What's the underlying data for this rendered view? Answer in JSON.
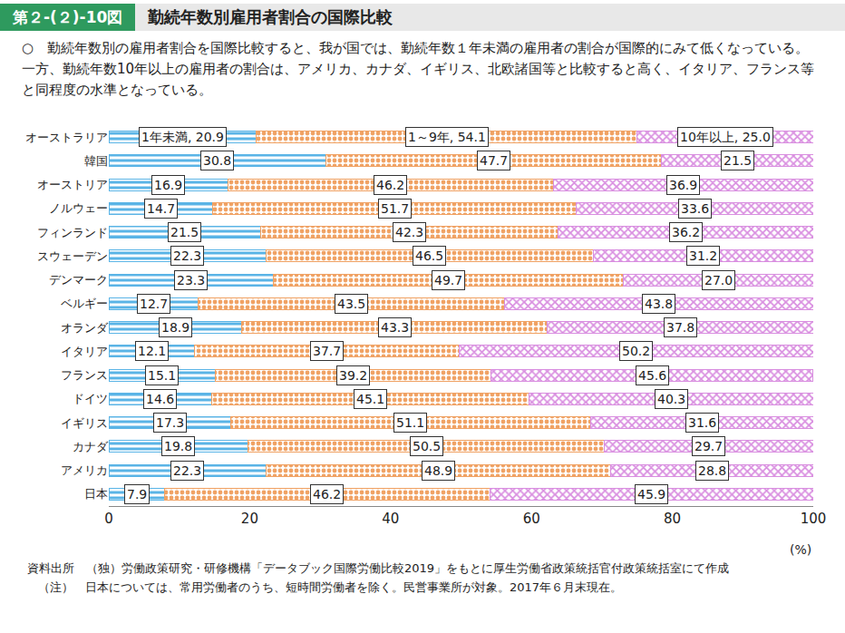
{
  "chart_data": {
    "type": "bar",
    "orientation": "horizontal",
    "stacked": true,
    "figure_label": "第２-(２)-10図",
    "title": "勤続年数別雇用者割合の国際比較",
    "subtitle": "○　勤続年数別の雇用者割合を国際比較すると、我が国では、勤続年数１年未満の雇用者の割合が国際的にみて低くなっている。一方、勤続年数10年以上の雇用者の割合は、アメリカ、カナダ、イギリス、北欧諸国等と比較すると高く、イタリア、フランス等と同程度の水準となっている。",
    "xlabel": "(%)",
    "source": "資料出所　（独）労働政策研究・研修機構「データブック国際労働比較2019」をもとに厚生労働省政策統括官付政策統括室にて作成",
    "note": "（注）　日本については、常用労働者のうち、短時間労働者を除く。民営事業所が対象。2017年６月末現在。",
    "categories": [
      "オーストラリア",
      "韓国",
      "オーストリア",
      "ノルウェー",
      "フィンランド",
      "スウェーデン",
      "デンマーク",
      "ベルギー",
      "オランダ",
      "イタリア",
      "フランス",
      "ドイツ",
      "イギリス",
      "カナダ",
      "アメリカ",
      "日本"
    ],
    "series": [
      {
        "name": "1年未満",
        "color": "#5ab4e6",
        "values": [
          20.9,
          30.8,
          16.9,
          14.7,
          21.5,
          22.3,
          23.3,
          12.7,
          18.9,
          12.1,
          15.1,
          14.6,
          17.3,
          19.8,
          22.3,
          7.9
        ],
        "value_labels": [
          "1年未満, 20.9",
          "30.8",
          "16.9",
          "14.7",
          "21.5",
          "22.3",
          "23.3",
          "12.7",
          "18.9",
          "12.1",
          "15.1",
          "14.6",
          "17.3",
          "19.8",
          "22.3",
          "7.9"
        ]
      },
      {
        "name": "1～9年",
        "color": "#f0a264",
        "values": [
          54.1,
          47.7,
          46.2,
          51.7,
          42.3,
          46.5,
          49.7,
          43.5,
          43.3,
          37.7,
          39.2,
          45.1,
          51.1,
          50.5,
          48.9,
          46.2
        ],
        "value_labels": [
          "1～9年, 54.1",
          "47.7",
          "46.2",
          "51.7",
          "42.3",
          "46.5",
          "49.7",
          "43.5",
          "43.3",
          "37.7",
          "39.2",
          "45.1",
          "51.1",
          "50.5",
          "48.9",
          "46.2"
        ]
      },
      {
        "name": "10年以上",
        "color": "#d98ee0",
        "values": [
          25.0,
          21.5,
          36.9,
          33.6,
          36.2,
          31.2,
          27.0,
          43.8,
          37.8,
          50.2,
          45.6,
          40.3,
          31.6,
          29.7,
          28.8,
          45.9
        ],
        "value_labels": [
          "10年以上, 25.0",
          "21.5",
          "36.9",
          "33.6",
          "36.2",
          "31.2",
          "27.0",
          "43.8",
          "37.8",
          "50.2",
          "45.6",
          "40.3",
          "31.6",
          "29.7",
          "28.8",
          "45.9"
        ]
      }
    ],
    "xlim": [
      0,
      100
    ],
    "xticks": [
      0,
      20,
      40,
      60,
      80,
      100
    ],
    "grid": false,
    "data_labels": true
  }
}
